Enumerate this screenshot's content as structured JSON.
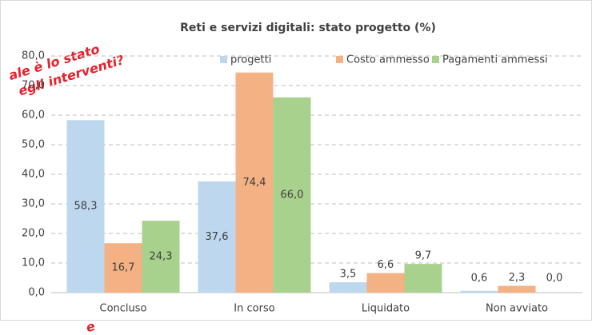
{
  "chart_data": {
    "type": "bar",
    "title": "Reti e servizi digitali: stato progetto (%)",
    "annotations": [
      "ale è lo stato",
      "egli interventi?",
      "e"
    ],
    "categories": [
      "Concluso",
      "In corso",
      "Liquidato",
      "Non avviato"
    ],
    "series": [
      {
        "name": "progetti",
        "color": "#bdd7ee",
        "values": [
          58.3,
          37.6,
          3.5,
          0.6
        ],
        "value_labels": [
          "58,3",
          "37,6",
          "3,5",
          "0,6"
        ]
      },
      {
        "name": "Costo ammesso",
        "color": "#f4b183",
        "values": [
          16.7,
          74.4,
          6.6,
          2.3
        ],
        "value_labels": [
          "16,7",
          "74,4",
          "6,6",
          "2,3"
        ]
      },
      {
        "name": "Pagamenti ammessi",
        "color": "#a9d18e",
        "values": [
          24.3,
          66.0,
          9.7,
          0.0
        ],
        "value_labels": [
          "24,3",
          "66,0",
          "9,7",
          "0,0"
        ]
      }
    ],
    "ylim": [
      0,
      80
    ],
    "yticks": [
      {
        "value": 0,
        "label": "0,0"
      },
      {
        "value": 10,
        "label": "10,0"
      },
      {
        "value": 20,
        "label": "20,0"
      },
      {
        "value": 30,
        "label": "30,0"
      },
      {
        "value": 40,
        "label": "40,0"
      },
      {
        "value": 50,
        "label": "50,0"
      },
      {
        "value": 60,
        "label": "60,0"
      },
      {
        "value": 70,
        "label": "70,0"
      },
      {
        "value": 80,
        "label": "80,0"
      }
    ],
    "grid": true,
    "legend": "top"
  }
}
